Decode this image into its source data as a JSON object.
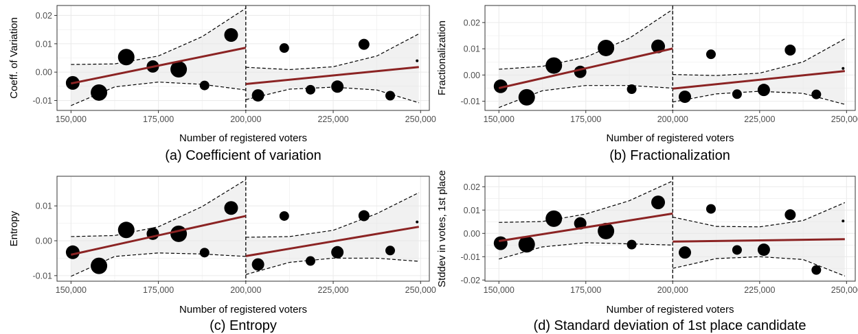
{
  "colors": {
    "fit_line": "#8b2323",
    "band_fill": "#e6e6e6",
    "point": "#000000",
    "grid": "#ebebeb"
  },
  "chart_data": [
    {
      "type": "scatter",
      "caption": "(a) Coefficient of variation",
      "xlabel": "Number of registered voters",
      "ylabel": "Coeff. of Variation",
      "xlim": [
        146000,
        252500
      ],
      "ylim": [
        -0.0135,
        0.0235
      ],
      "xticks": [
        150000,
        175000,
        200000,
        225000,
        250000
      ],
      "xtick_labels": [
        "150,000",
        "175,000",
        "200,000",
        "225,000",
        "250,000"
      ],
      "yticks": [
        -0.01,
        0.0,
        0.01,
        0.02
      ],
      "ytick_labels": [
        "-0.01",
        "0.00",
        "0.01",
        "0.02"
      ],
      "cutoff": 200000,
      "points": [
        {
          "x": 150500,
          "y": -0.0038,
          "size": 10
        },
        {
          "x": 158000,
          "y": -0.0072,
          "size": 12
        },
        {
          "x": 165800,
          "y": 0.0053,
          "size": 12
        },
        {
          "x": 173400,
          "y": 0.002,
          "size": 9
        },
        {
          "x": 180800,
          "y": 0.001,
          "size": 12
        },
        {
          "x": 188200,
          "y": -0.0047,
          "size": 7
        },
        {
          "x": 195800,
          "y": 0.0131,
          "size": 10
        },
        {
          "x": 203500,
          "y": -0.0082,
          "size": 9
        },
        {
          "x": 211000,
          "y": 0.0085,
          "size": 7
        },
        {
          "x": 218500,
          "y": -0.0062,
          "size": 7
        },
        {
          "x": 226200,
          "y": -0.0051,
          "size": 9
        },
        {
          "x": 233800,
          "y": 0.0098,
          "size": 8
        },
        {
          "x": 241300,
          "y": -0.0083,
          "size": 7
        },
        {
          "x": 249000,
          "y": 0.004,
          "size": 2
        }
      ],
      "fit_left": {
        "x": [
          150000,
          200000
        ],
        "y": [
          -0.004,
          0.0086
        ]
      },
      "fit_right": {
        "x": [
          200000,
          249500
        ],
        "y": [
          -0.0042,
          0.0018
        ]
      },
      "band_left": {
        "x": [
          150000,
          162500,
          175000,
          187500,
          200000
        ],
        "lower": [
          -0.0118,
          -0.0052,
          -0.0035,
          -0.0043,
          -0.0063
        ],
        "upper": [
          0.0027,
          0.0029,
          0.0057,
          0.0125,
          0.0225
        ]
      },
      "band_right": {
        "x": [
          200000,
          212500,
          225000,
          237500,
          249500
        ],
        "lower": [
          -0.0097,
          -0.006,
          -0.0053,
          -0.0063,
          -0.0108
        ],
        "upper": [
          0.0017,
          0.0009,
          0.0019,
          0.0057,
          0.0135
        ]
      }
    },
    {
      "type": "scatter",
      "caption": "(b) Fractionalization",
      "xlabel": "Number of registered voters",
      "ylabel": "Fractionalization",
      "xlim": [
        146000,
        252500
      ],
      "ylim": [
        -0.0135,
        0.0265
      ],
      "xticks": [
        150000,
        175000,
        200000,
        225000,
        250000
      ],
      "xtick_labels": [
        "150,000",
        "175,000",
        "200,000",
        "225,000",
        "250,000"
      ],
      "yticks": [
        -0.01,
        0.0,
        0.01,
        0.02
      ],
      "ytick_labels": [
        "-0.01",
        "0.00",
        "0.01",
        "0.02"
      ],
      "cutoff": 200000,
      "points": [
        {
          "x": 150500,
          "y": -0.0043,
          "size": 10
        },
        {
          "x": 158000,
          "y": -0.0085,
          "size": 12
        },
        {
          "x": 165800,
          "y": 0.0036,
          "size": 12
        },
        {
          "x": 173400,
          "y": 0.0012,
          "size": 9
        },
        {
          "x": 180800,
          "y": 0.0103,
          "size": 12
        },
        {
          "x": 188200,
          "y": -0.0054,
          "size": 7
        },
        {
          "x": 195800,
          "y": 0.0109,
          "size": 10
        },
        {
          "x": 203500,
          "y": -0.0083,
          "size": 9
        },
        {
          "x": 211000,
          "y": 0.0079,
          "size": 7
        },
        {
          "x": 218500,
          "y": -0.0073,
          "size": 7
        },
        {
          "x": 226200,
          "y": -0.0057,
          "size": 9
        },
        {
          "x": 233800,
          "y": 0.0095,
          "size": 8
        },
        {
          "x": 241300,
          "y": -0.0074,
          "size": 7
        },
        {
          "x": 249000,
          "y": 0.0025,
          "size": 2
        }
      ],
      "fit_left": {
        "x": [
          150000,
          200000
        ],
        "y": [
          -0.005,
          0.0101
        ]
      },
      "fit_right": {
        "x": [
          200000,
          249500
        ],
        "y": [
          -0.0052,
          0.0015
        ]
      },
      "band_left": {
        "x": [
          150000,
          162500,
          175000,
          187500,
          200000
        ],
        "lower": [
          -0.0124,
          -0.006,
          -0.004,
          -0.004,
          -0.005
        ],
        "upper": [
          0.0022,
          0.0033,
          0.0068,
          0.014,
          0.025
        ]
      },
      "band_right": {
        "x": [
          200000,
          212500,
          225000,
          237500,
          249500
        ],
        "lower": [
          -0.0103,
          -0.0072,
          -0.0062,
          -0.007,
          -0.0112
        ],
        "upper": [
          0.0002,
          -0.0002,
          0.0007,
          0.005,
          0.0138
        ]
      }
    },
    {
      "type": "scatter",
      "caption": "(c) Entropy",
      "xlabel": "Number of registered voters",
      "ylabel": "Entropy",
      "xlim": [
        146000,
        252500
      ],
      "ylim": [
        -0.0116,
        0.0185
      ],
      "xticks": [
        150000,
        175000,
        200000,
        225000,
        250000
      ],
      "xtick_labels": [
        "150,000",
        "175,000",
        "200,000",
        "225,000",
        "250,000"
      ],
      "yticks": [
        -0.01,
        0.0,
        0.01
      ],
      "ytick_labels": [
        "-0.01",
        "0.00",
        "0.01"
      ],
      "cutoff": 200000,
      "points": [
        {
          "x": 150500,
          "y": -0.0033,
          "size": 10
        },
        {
          "x": 158000,
          "y": -0.0072,
          "size": 12
        },
        {
          "x": 165800,
          "y": 0.0031,
          "size": 12
        },
        {
          "x": 173400,
          "y": 0.002,
          "size": 9
        },
        {
          "x": 180800,
          "y": 0.002,
          "size": 12
        },
        {
          "x": 188200,
          "y": -0.0034,
          "size": 7
        },
        {
          "x": 195800,
          "y": 0.0094,
          "size": 10
        },
        {
          "x": 203500,
          "y": -0.0068,
          "size": 9
        },
        {
          "x": 211000,
          "y": 0.0071,
          "size": 7
        },
        {
          "x": 218500,
          "y": -0.0058,
          "size": 7
        },
        {
          "x": 226200,
          "y": -0.0033,
          "size": 9
        },
        {
          "x": 233800,
          "y": 0.0072,
          "size": 8
        },
        {
          "x": 241300,
          "y": -0.0028,
          "size": 7
        },
        {
          "x": 249000,
          "y": 0.0054,
          "size": 2
        }
      ],
      "fit_left": {
        "x": [
          150000,
          200000
        ],
        "y": [
          -0.004,
          0.0071
        ]
      },
      "fit_right": {
        "x": [
          200000,
          249500
        ],
        "y": [
          -0.0044,
          0.004
        ]
      },
      "band_left": {
        "x": [
          150000,
          162500,
          175000,
          187500,
          200000
        ],
        "lower": [
          -0.0102,
          -0.0045,
          -0.0035,
          -0.0038,
          -0.0045
        ],
        "upper": [
          0.0012,
          0.0015,
          0.004,
          0.0098,
          0.0175
        ]
      },
      "band_right": {
        "x": [
          200000,
          212500,
          225000,
          237500,
          249500
        ],
        "lower": [
          -0.0097,
          -0.0062,
          -0.005,
          -0.005,
          -0.0059
        ],
        "upper": [
          0.001,
          0.0012,
          0.003,
          0.0078,
          0.0138
        ]
      }
    },
    {
      "type": "scatter",
      "caption": "(d) Standard deviation of 1st place candidate",
      "xlabel": "Number of registered voters",
      "ylabel": "Stddev in votes, 1st place",
      "xlim": [
        146000,
        252500
      ],
      "ylim": [
        -0.0205,
        0.0245
      ],
      "xticks": [
        150000,
        175000,
        200000,
        225000,
        250000
      ],
      "xtick_labels": [
        "150,000",
        "175,000",
        "200,000",
        "225,000",
        "250,000"
      ],
      "yticks": [
        -0.02,
        -0.01,
        0.0,
        0.01,
        0.02
      ],
      "ytick_labels": [
        "-0.02",
        "-0.01",
        "0.00",
        "0.01",
        "0.02"
      ],
      "cutoff": 200000,
      "points": [
        {
          "x": 150500,
          "y": -0.0042,
          "size": 10
        },
        {
          "x": 158000,
          "y": -0.0047,
          "size": 12
        },
        {
          "x": 165800,
          "y": 0.0063,
          "size": 12
        },
        {
          "x": 173400,
          "y": 0.0043,
          "size": 9
        },
        {
          "x": 180800,
          "y": 0.001,
          "size": 12
        },
        {
          "x": 188200,
          "y": -0.0048,
          "size": 7
        },
        {
          "x": 195800,
          "y": 0.0133,
          "size": 10
        },
        {
          "x": 203500,
          "y": -0.0082,
          "size": 9
        },
        {
          "x": 211000,
          "y": 0.0105,
          "size": 7
        },
        {
          "x": 218500,
          "y": -0.0071,
          "size": 7
        },
        {
          "x": 226200,
          "y": -0.007,
          "size": 9
        },
        {
          "x": 233800,
          "y": 0.008,
          "size": 8
        },
        {
          "x": 241300,
          "y": -0.0157,
          "size": 7
        },
        {
          "x": 249000,
          "y": 0.0053,
          "size": 2
        }
      ],
      "fit_left": {
        "x": [
          150000,
          200000
        ],
        "y": [
          -0.0033,
          0.0085
        ]
      },
      "fit_right": {
        "x": [
          200000,
          249500
        ],
        "y": [
          -0.0035,
          -0.0025
        ]
      },
      "band_left": {
        "x": [
          150000,
          162500,
          175000,
          187500,
          200000
        ],
        "lower": [
          -0.011,
          -0.0058,
          -0.004,
          -0.0045,
          -0.005
        ],
        "upper": [
          0.0047,
          0.0051,
          0.0083,
          0.014,
          0.0225
        ]
      },
      "band_right": {
        "x": [
          200000,
          212500,
          225000,
          237500,
          249500
        ],
        "lower": [
          -0.015,
          -0.0108,
          -0.01,
          -0.0112,
          -0.0183
        ],
        "upper": [
          0.007,
          0.003,
          0.0028,
          0.0055,
          0.0132
        ]
      }
    }
  ]
}
